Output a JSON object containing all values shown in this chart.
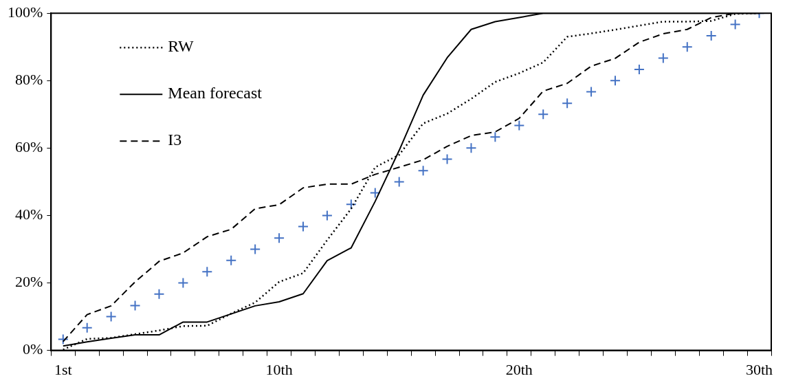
{
  "chart_data": {
    "type": "line",
    "categories": [
      "1st",
      null,
      null,
      null,
      null,
      null,
      null,
      null,
      null,
      "10th",
      null,
      null,
      null,
      null,
      null,
      null,
      null,
      null,
      null,
      "20th",
      null,
      null,
      null,
      null,
      null,
      null,
      null,
      null,
      null,
      "30th"
    ],
    "ylim": [
      0,
      100
    ],
    "yticks": [
      {
        "value": 0,
        "label": "0%"
      },
      {
        "value": 20,
        "label": "20%"
      },
      {
        "value": 40,
        "label": "40%"
      },
      {
        "value": 60,
        "label": "60%"
      },
      {
        "value": 80,
        "label": "80%"
      },
      {
        "value": 100,
        "label": "100%"
      }
    ],
    "grid": false,
    "legend": "top left",
    "marker": "none",
    "series": [
      {
        "name": "RW",
        "color": "#000000",
        "line_style": "dotted",
        "values": [
          0.2,
          3.4,
          3.7,
          4.8,
          5.9,
          7.2,
          7.3,
          10.9,
          14.2,
          20.3,
          22.9,
          32.7,
          42,
          54.3,
          58,
          67.3,
          70.2,
          74.6,
          79.6,
          82.2,
          85.4,
          93,
          94,
          95.1,
          96.3,
          97.5,
          97.5,
          97.7,
          99.8,
          100
        ]
      },
      {
        "name": "Mean forecast",
        "color": "#000000",
        "line_style": "solid",
        "values": [
          1.3,
          2.5,
          3.6,
          4.6,
          4.6,
          8.4,
          8.4,
          10.8,
          13.2,
          14.4,
          16.8,
          26.6,
          30.4,
          44.2,
          59.3,
          75.7,
          86.8,
          95.2,
          97.5,
          98.7,
          100,
          100,
          100,
          100,
          100,
          100,
          100,
          100,
          100,
          100
        ]
      },
      {
        "name": "I3",
        "color": "#000000",
        "line_style": "dashed",
        "values": [
          2.6,
          10.6,
          13.2,
          20.3,
          26.4,
          28.9,
          33.7,
          35.9,
          42,
          43.2,
          48.2,
          49.3,
          49.3,
          52.2,
          54.3,
          56.5,
          60.5,
          63.7,
          64.8,
          68.8,
          76.9,
          79.2,
          84.3,
          86.6,
          91.4,
          93.9,
          95.2,
          98.7,
          100,
          100
        ]
      },
      {
        "type": "scatter",
        "marker": "cross",
        "color": "#4472c4",
        "values": [
          3.3,
          6.7,
          10,
          13.3,
          16.7,
          20,
          23.3,
          26.7,
          30,
          33.3,
          36.7,
          40,
          43.3,
          46.7,
          50,
          53.3,
          56.7,
          60,
          63.3,
          66.7,
          70,
          73.3,
          76.7,
          80,
          83.3,
          86.7,
          90,
          93.3,
          96.7,
          100
        ]
      }
    ]
  }
}
